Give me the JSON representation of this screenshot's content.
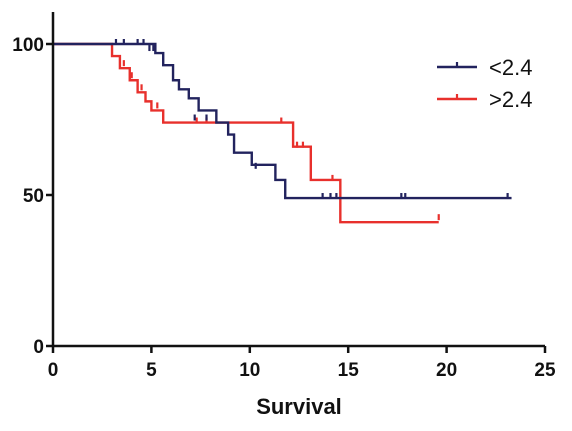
{
  "chart_data": {
    "type": "line",
    "step": true,
    "xlabel": "Survival",
    "ylabel": "",
    "xlim": [
      0,
      25
    ],
    "ylim": [
      0,
      100
    ],
    "xticks": [
      0,
      5,
      10,
      15,
      20,
      25
    ],
    "yticks": [
      0,
      50,
      100
    ],
    "grid": false,
    "legend_position": "top-right",
    "series": [
      {
        "name": "<2.4",
        "color": "#22235e",
        "steps": [
          [
            0,
            100
          ],
          [
            5.2,
            97
          ],
          [
            5.6,
            93
          ],
          [
            6.1,
            88
          ],
          [
            6.4,
            85
          ],
          [
            6.9,
            82
          ],
          [
            7.4,
            78
          ],
          [
            8.3,
            74
          ],
          [
            8.9,
            70
          ],
          [
            9.2,
            64
          ],
          [
            10.1,
            60
          ],
          [
            11.3,
            55
          ],
          [
            11.8,
            49
          ],
          [
            23.3,
            49
          ]
        ],
        "censors": [
          [
            3.2,
            100
          ],
          [
            3.6,
            100
          ],
          [
            4.3,
            100
          ],
          [
            4.6,
            100
          ],
          [
            4.9,
            98
          ],
          [
            5.1,
            98
          ],
          [
            7.2,
            75
          ],
          [
            7.8,
            75
          ],
          [
            10.3,
            59
          ],
          [
            13.7,
            49
          ],
          [
            14.1,
            49
          ],
          [
            14.4,
            49
          ],
          [
            17.7,
            49
          ],
          [
            17.9,
            49
          ],
          [
            23.1,
            49
          ]
        ]
      },
      {
        "name": ">2.4",
        "color": "#e8302c",
        "steps": [
          [
            0,
            100
          ],
          [
            3.0,
            96
          ],
          [
            3.4,
            92
          ],
          [
            3.9,
            88
          ],
          [
            4.3,
            84
          ],
          [
            4.7,
            81
          ],
          [
            5.0,
            78
          ],
          [
            5.6,
            74
          ],
          [
            12.2,
            66
          ],
          [
            13.1,
            55
          ],
          [
            14.6,
            41
          ],
          [
            19.6,
            41
          ]
        ],
        "censors": [
          [
            3.6,
            93
          ],
          [
            4.0,
            89
          ],
          [
            4.5,
            85
          ],
          [
            5.3,
            79
          ],
          [
            7.3,
            74
          ],
          [
            7.8,
            74
          ],
          [
            11.6,
            74
          ],
          [
            12.4,
            66
          ],
          [
            12.7,
            66
          ],
          [
            14.2,
            55
          ],
          [
            19.6,
            42
          ]
        ]
      }
    ]
  }
}
